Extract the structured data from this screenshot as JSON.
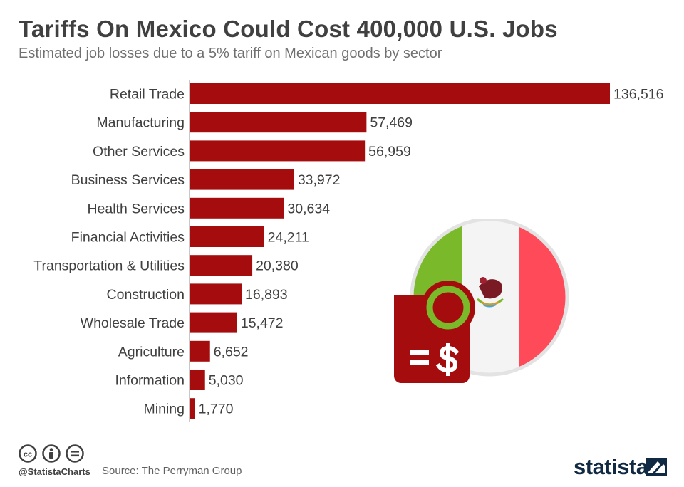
{
  "header": {
    "title": "Tariffs On Mexico Could Cost 400,000 U.S. Jobs",
    "subtitle": "Estimated job losses due to a 5% tariff on Mexican goods by sector"
  },
  "chart_data": {
    "type": "bar",
    "orientation": "horizontal",
    "title": "Tariffs On Mexico Could Cost 400,000 U.S. Jobs",
    "subtitle": "Estimated job losses due to a 5% tariff on Mexican goods by sector",
    "categories": [
      "Retail Trade",
      "Manufacturing",
      "Other Services",
      "Business Services",
      "Health Services",
      "Financial Activities",
      "Transportation & Utilities",
      "Construction",
      "Wholesale Trade",
      "Agriculture",
      "Information",
      "Mining"
    ],
    "values": [
      136516,
      57469,
      56959,
      33972,
      30634,
      24211,
      20380,
      16893,
      15472,
      6652,
      5030,
      1770
    ],
    "value_labels": [
      "136,516",
      "57,469",
      "56,959",
      "33,972",
      "30,634",
      "24,211",
      "20,380",
      "16,893",
      "15,472",
      "6,652",
      "5,030",
      "1,770"
    ],
    "xlim": [
      0,
      136516
    ],
    "bar_color": "#a50c0e",
    "grid": false,
    "legend": "none"
  },
  "footer": {
    "handle": "@StatistaCharts",
    "source": "Source: The Perryman Group",
    "brand": "statista"
  },
  "illustration": {
    "icons": [
      "mexico-flag-icon",
      "tariff-document-icon",
      "percent-icon",
      "dollar-icon"
    ],
    "colors": {
      "green": "#7ab929",
      "white": "#f4f4f4",
      "red": "#ff4a5a",
      "dark_red": "#a50c0e"
    }
  }
}
